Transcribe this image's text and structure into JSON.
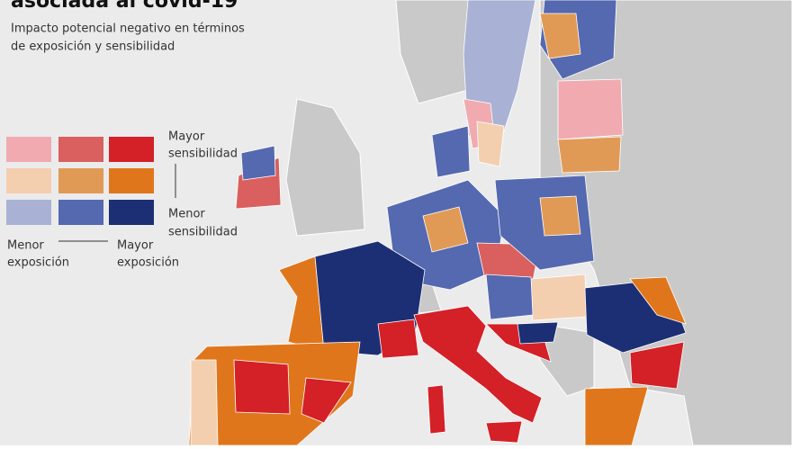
{
  "header": {
    "title": "asociada al covid-19",
    "subtitle_line1": "Impacto potencial negativo en términos",
    "subtitle_line2": "de exposición y sensibilidad"
  },
  "legend": {
    "top_label_line1": "Mayor",
    "top_label_line2": "sensibilidad",
    "bottom_label_line1": "Menor",
    "bottom_label_line2": "sensibilidad",
    "left_label_line1": "Menor",
    "left_label_line2": "exposición",
    "right_label_line1": "Mayor",
    "right_label_line2": "exposición"
  }
}
